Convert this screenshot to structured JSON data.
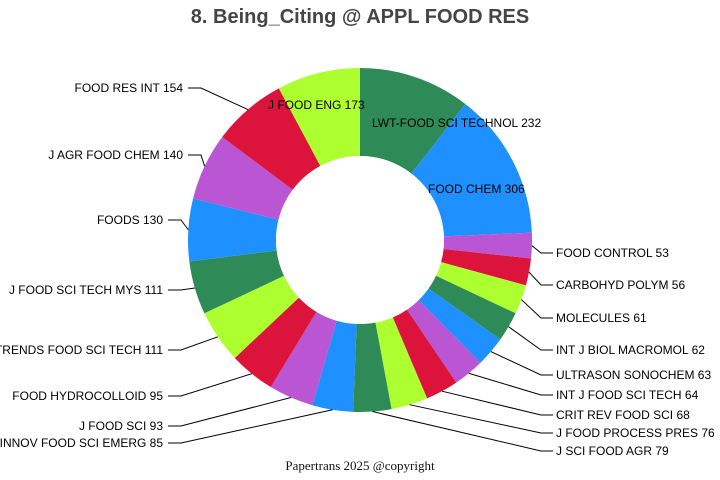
{
  "chart_data": {
    "type": "pie",
    "donut": true,
    "title": "8. Being_Citing @ APPL FOOD RES",
    "footer": "Papertrans 2025 @copyright",
    "colors": [
      "#1e90ff",
      "#2e8b57",
      "#adff2f",
      "#dc143c",
      "#ba55d3"
    ],
    "slices": [
      {
        "label": "FOOD CHEM",
        "value": 306
      },
      {
        "label": "LWT-FOOD SCI TECHNOL",
        "value": 232
      },
      {
        "label": "J FOOD ENG",
        "value": 173
      },
      {
        "label": "FOOD RES INT",
        "value": 154
      },
      {
        "label": "J AGR FOOD CHEM",
        "value": 140
      },
      {
        "label": "FOODS",
        "value": 130
      },
      {
        "label": "J FOOD SCI TECH MYS",
        "value": 111
      },
      {
        "label": "TRENDS FOOD SCI TECH",
        "value": 111
      },
      {
        "label": "FOOD HYDROCOLLOID",
        "value": 95
      },
      {
        "label": "J FOOD SCI",
        "value": 93
      },
      {
        "label": "INNOV FOOD SCI EMERG",
        "value": 85
      },
      {
        "label": "J SCI FOOD AGR",
        "value": 79
      },
      {
        "label": "J FOOD PROCESS PRES",
        "value": 76
      },
      {
        "label": "CRIT REV FOOD SCI",
        "value": 68
      },
      {
        "label": "INT J FOOD SCI TECH",
        "value": 64
      },
      {
        "label": "ULTRASON SONOCHEM",
        "value": 63
      },
      {
        "label": "INT J BIOL MACROMOL",
        "value": 62
      },
      {
        "label": "MOLECULES",
        "value": 61
      },
      {
        "label": "CARBOHYD POLYM",
        "value": 56
      },
      {
        "label": "FOOD CONTROL",
        "value": 53
      }
    ]
  }
}
